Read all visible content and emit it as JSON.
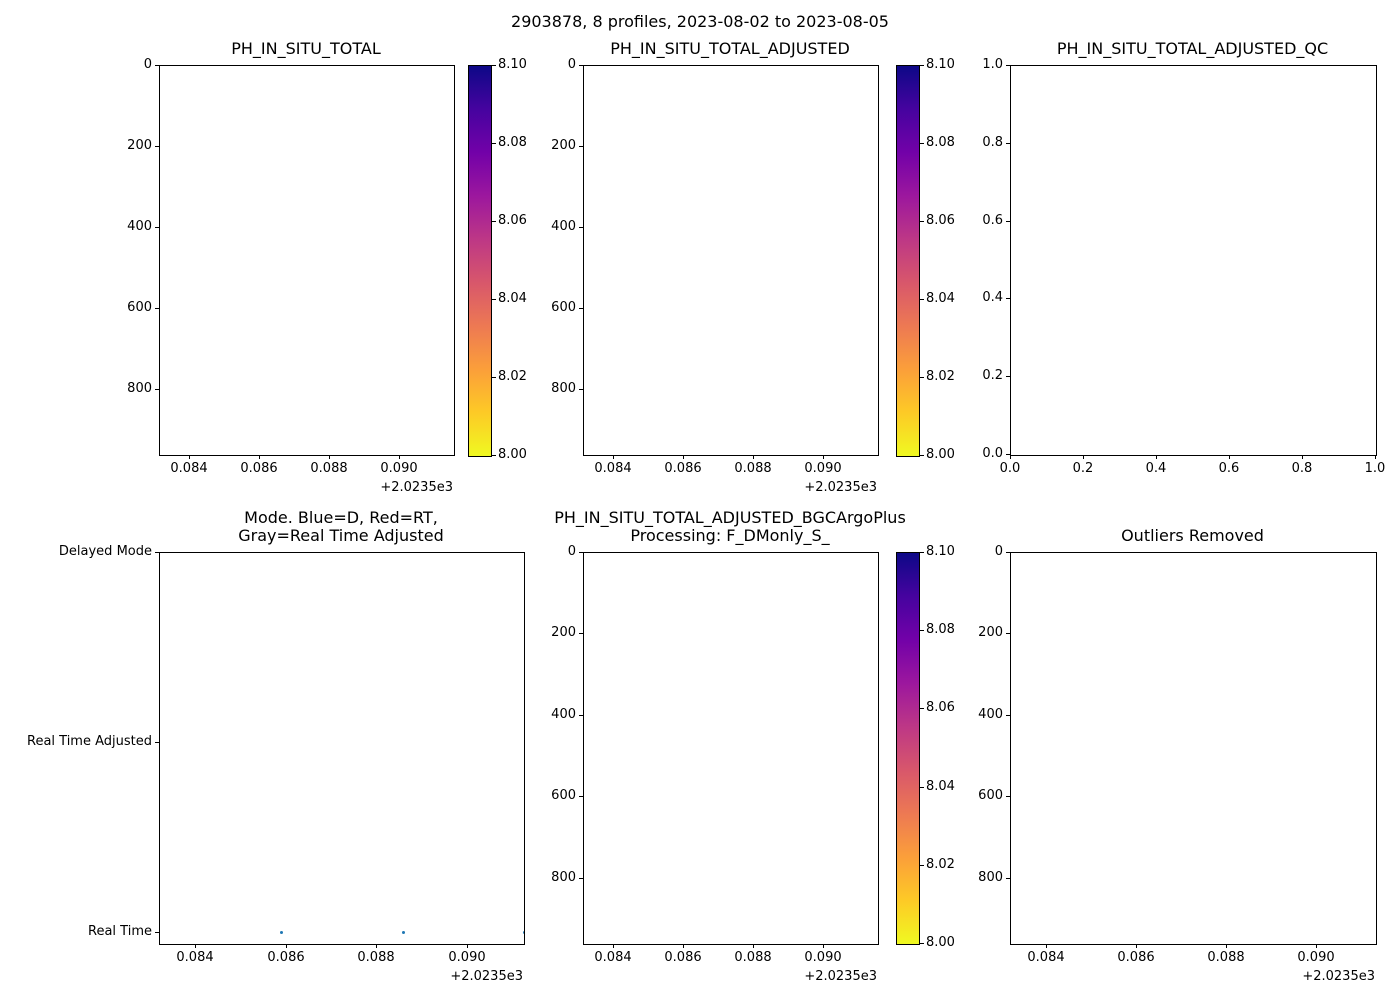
{
  "figure": {
    "suptitle": "2903878, 8 profiles, 2023-08-02 to 2023-08-05",
    "background": "#ffffff"
  },
  "colors": {
    "text": "#000000",
    "axis": "#000000",
    "dot_blue": "#1f77b4",
    "colorbar_gradient": [
      "#0d0887",
      "#46039f",
      "#7201a8",
      "#9c179e",
      "#bd3786",
      "#d8576b",
      "#ed7953",
      "#fb9f3a",
      "#fdca26",
      "#f0f921"
    ]
  },
  "chart_data": [
    {
      "type": "scatter",
      "title": "PH_IN_SITU_TOTAL",
      "xlim": [
        2023.58314,
        2023.59154
      ],
      "x_tick_values": [
        2023.584,
        2023.586,
        2023.588,
        2023.59
      ],
      "x_tick_labels": [
        "0.084",
        "0.086",
        "0.088",
        "0.090"
      ],
      "x_offset": "+2.0235e3",
      "ylim": [
        0,
        960
      ],
      "y_inverted": true,
      "y_tick_values": [
        0,
        200,
        400,
        600,
        800
      ],
      "y_tick_labels": [
        "0",
        "200",
        "400",
        "600",
        "800"
      ],
      "points": [],
      "colorbar": {
        "vmin": 8.0,
        "vmax": 8.1,
        "cmap": "plasma_r",
        "tick_values": [
          8.1,
          8.08,
          8.06,
          8.04,
          8.02,
          8.0
        ],
        "tick_labels": [
          "8.10",
          "8.08",
          "8.06",
          "8.04",
          "8.02",
          "8.00"
        ]
      }
    },
    {
      "type": "scatter",
      "title": "PH_IN_SITU_TOTAL_ADJUSTED",
      "xlim": [
        2023.58314,
        2023.59154
      ],
      "x_tick_values": [
        2023.584,
        2023.586,
        2023.588,
        2023.59
      ],
      "x_tick_labels": [
        "0.084",
        "0.086",
        "0.088",
        "0.090"
      ],
      "x_offset": "+2.0235e3",
      "ylim": [
        0,
        960
      ],
      "y_inverted": true,
      "y_tick_values": [
        0,
        200,
        400,
        600,
        800
      ],
      "y_tick_labels": [
        "0",
        "200",
        "400",
        "600",
        "800"
      ],
      "points": [],
      "colorbar": {
        "vmin": 8.0,
        "vmax": 8.1,
        "cmap": "plasma_r",
        "tick_values": [
          8.1,
          8.08,
          8.06,
          8.04,
          8.02,
          8.0
        ],
        "tick_labels": [
          "8.10",
          "8.08",
          "8.06",
          "8.04",
          "8.02",
          "8.00"
        ]
      }
    },
    {
      "type": "scatter",
      "title": "PH_IN_SITU_TOTAL_ADJUSTED_QC",
      "xlim": [
        0,
        1
      ],
      "x_tick_values": [
        0,
        0.2,
        0.4,
        0.6,
        0.8,
        1.0
      ],
      "x_tick_labels": [
        "0.0",
        "0.2",
        "0.4",
        "0.6",
        "0.8",
        "1.0"
      ],
      "x_offset": "",
      "ylim": [
        0,
        1
      ],
      "y_inverted": false,
      "y_tick_values": [
        1.0,
        0.8,
        0.6,
        0.4,
        0.2,
        0.0
      ],
      "y_tick_labels": [
        "1.0",
        "0.8",
        "0.6",
        "0.4",
        "0.2",
        "0.0"
      ],
      "points": []
    },
    {
      "type": "scatter",
      "title": "Mode. Blue=D, Red=RT,\nGray=Real Time Adjusted",
      "xlim": [
        2023.58321,
        2023.59123
      ],
      "x_tick_values": [
        2023.584,
        2023.586,
        2023.588,
        2023.59
      ],
      "x_tick_labels": [
        "0.084",
        "0.086",
        "0.088",
        "0.090"
      ],
      "x_offset": "+2.0235e3",
      "ylim": [
        -0.058,
        2.0
      ],
      "y_inverted": false,
      "y_tick_values": [
        2,
        1,
        0
      ],
      "y_tick_labels": [
        "Delayed Mode",
        "Real Time Adjusted",
        "Real Time"
      ],
      "point_color": "#1f77b4",
      "points": [
        {
          "x": 2023.58588,
          "y": 0
        },
        {
          "x": 2023.58857,
          "y": 0
        },
        {
          "x": 2023.59124,
          "y": 0
        }
      ]
    },
    {
      "type": "scatter",
      "title": "PH_IN_SITU_TOTAL_ADJUSTED_BGCArgoPlus\nProcessing: F_DMonly_S_",
      "xlim": [
        2023.58314,
        2023.59154
      ],
      "x_tick_values": [
        2023.584,
        2023.586,
        2023.588,
        2023.59
      ],
      "x_tick_labels": [
        "0.084",
        "0.086",
        "0.088",
        "0.090"
      ],
      "x_offset": "+2.0235e3",
      "ylim": [
        0,
        960
      ],
      "y_inverted": true,
      "y_tick_values": [
        0,
        200,
        400,
        600,
        800
      ],
      "y_tick_labels": [
        "0",
        "200",
        "400",
        "600",
        "800"
      ],
      "points": [],
      "colorbar": {
        "vmin": 8.0,
        "vmax": 8.1,
        "cmap": "plasma_r",
        "tick_values": [
          8.1,
          8.08,
          8.06,
          8.04,
          8.02,
          8.0
        ],
        "tick_labels": [
          "8.10",
          "8.08",
          "8.06",
          "8.04",
          "8.02",
          "8.00"
        ]
      }
    },
    {
      "type": "scatter",
      "title": "Outliers Removed",
      "xlim": [
        2023.5832,
        2023.59131
      ],
      "x_tick_values": [
        2023.584,
        2023.586,
        2023.588,
        2023.59
      ],
      "x_tick_labels": [
        "0.084",
        "0.086",
        "0.088",
        "0.090"
      ],
      "x_offset": "+2.0235e3",
      "ylim": [
        0,
        960
      ],
      "y_inverted": true,
      "y_tick_values": [
        0,
        200,
        400,
        600,
        800
      ],
      "y_tick_labels": [
        "0",
        "200",
        "400",
        "600",
        "800"
      ],
      "points": []
    }
  ]
}
